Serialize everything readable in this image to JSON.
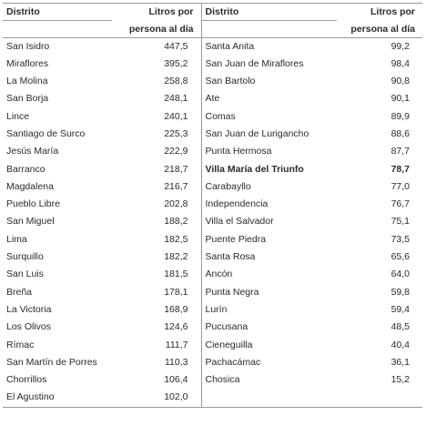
{
  "headers": {
    "district": "Distrito",
    "liters_line1": "Litros por",
    "liters_line2": "persona al día"
  },
  "left": [
    {
      "district": "San Isidro",
      "liters": "447,5"
    },
    {
      "district": "Miraflores",
      "liters": "395,2"
    },
    {
      "district": "La Molina",
      "liters": "258,8"
    },
    {
      "district": "San Borja",
      "liters": "248,1"
    },
    {
      "district": "Lince",
      "liters": "240,1"
    },
    {
      "district": "Santiago de Surco",
      "liters": "225,3"
    },
    {
      "district": "Jesús María",
      "liters": "222,9"
    },
    {
      "district": "Barranco",
      "liters": "218,7"
    },
    {
      "district": "Magdalena",
      "liters": "216,7"
    },
    {
      "district": "Pueblo Libre",
      "liters": "202,8"
    },
    {
      "district": "San Miguel",
      "liters": "188,2"
    },
    {
      "district": "Lima",
      "liters": "182,5"
    },
    {
      "district": "Surquillo",
      "liters": "182,2"
    },
    {
      "district": "San Luis",
      "liters": "181,5"
    },
    {
      "district": "Breña",
      "liters": "178,1"
    },
    {
      "district": "La Victoria",
      "liters": "168,9"
    },
    {
      "district": "Los Olivos",
      "liters": "124,6"
    },
    {
      "district": "Rímac",
      "liters": "111,7"
    },
    {
      "district": "San Martín de Porres",
      "liters": "110,3"
    },
    {
      "district": "Chorrillos",
      "liters": "106,4"
    },
    {
      "district": "El Agustino",
      "liters": "102,0"
    }
  ],
  "right": [
    {
      "district": "Santa Anita",
      "liters": "99,2"
    },
    {
      "district": "San Juan de Miraflores",
      "liters": "98,4"
    },
    {
      "district": "San Bartolo",
      "liters": "90,8"
    },
    {
      "district": "Ate",
      "liters": "90,1"
    },
    {
      "district": "Comas",
      "liters": "89,9"
    },
    {
      "district": "San Juan de Lurigancho",
      "liters": "88,6"
    },
    {
      "district": "Punta Hermosa",
      "liters": "87,7"
    },
    {
      "district": "Villa María del Triunfo",
      "liters": "78,7",
      "bold": true
    },
    {
      "district": "Carabayllo",
      "liters": "77,0"
    },
    {
      "district": "Independencia",
      "liters": "76,7"
    },
    {
      "district": "Villa el Salvador",
      "liters": "75,1"
    },
    {
      "district": "Puente Piedra",
      "liters": "73,5"
    },
    {
      "district": "Santa Rosa",
      "liters": "65,6"
    },
    {
      "district": "Ancón",
      "liters": "64,0"
    },
    {
      "district": "Punta Negra",
      "liters": "59,8"
    },
    {
      "district": "Lurín",
      "liters": "59,4"
    },
    {
      "district": "Pucusana",
      "liters": "48,5"
    },
    {
      "district": "Cieneguilla",
      "liters": "40,4"
    },
    {
      "district": "Pachacámac",
      "liters": "36,1"
    },
    {
      "district": "Chosica",
      "liters": "15,2"
    }
  ]
}
